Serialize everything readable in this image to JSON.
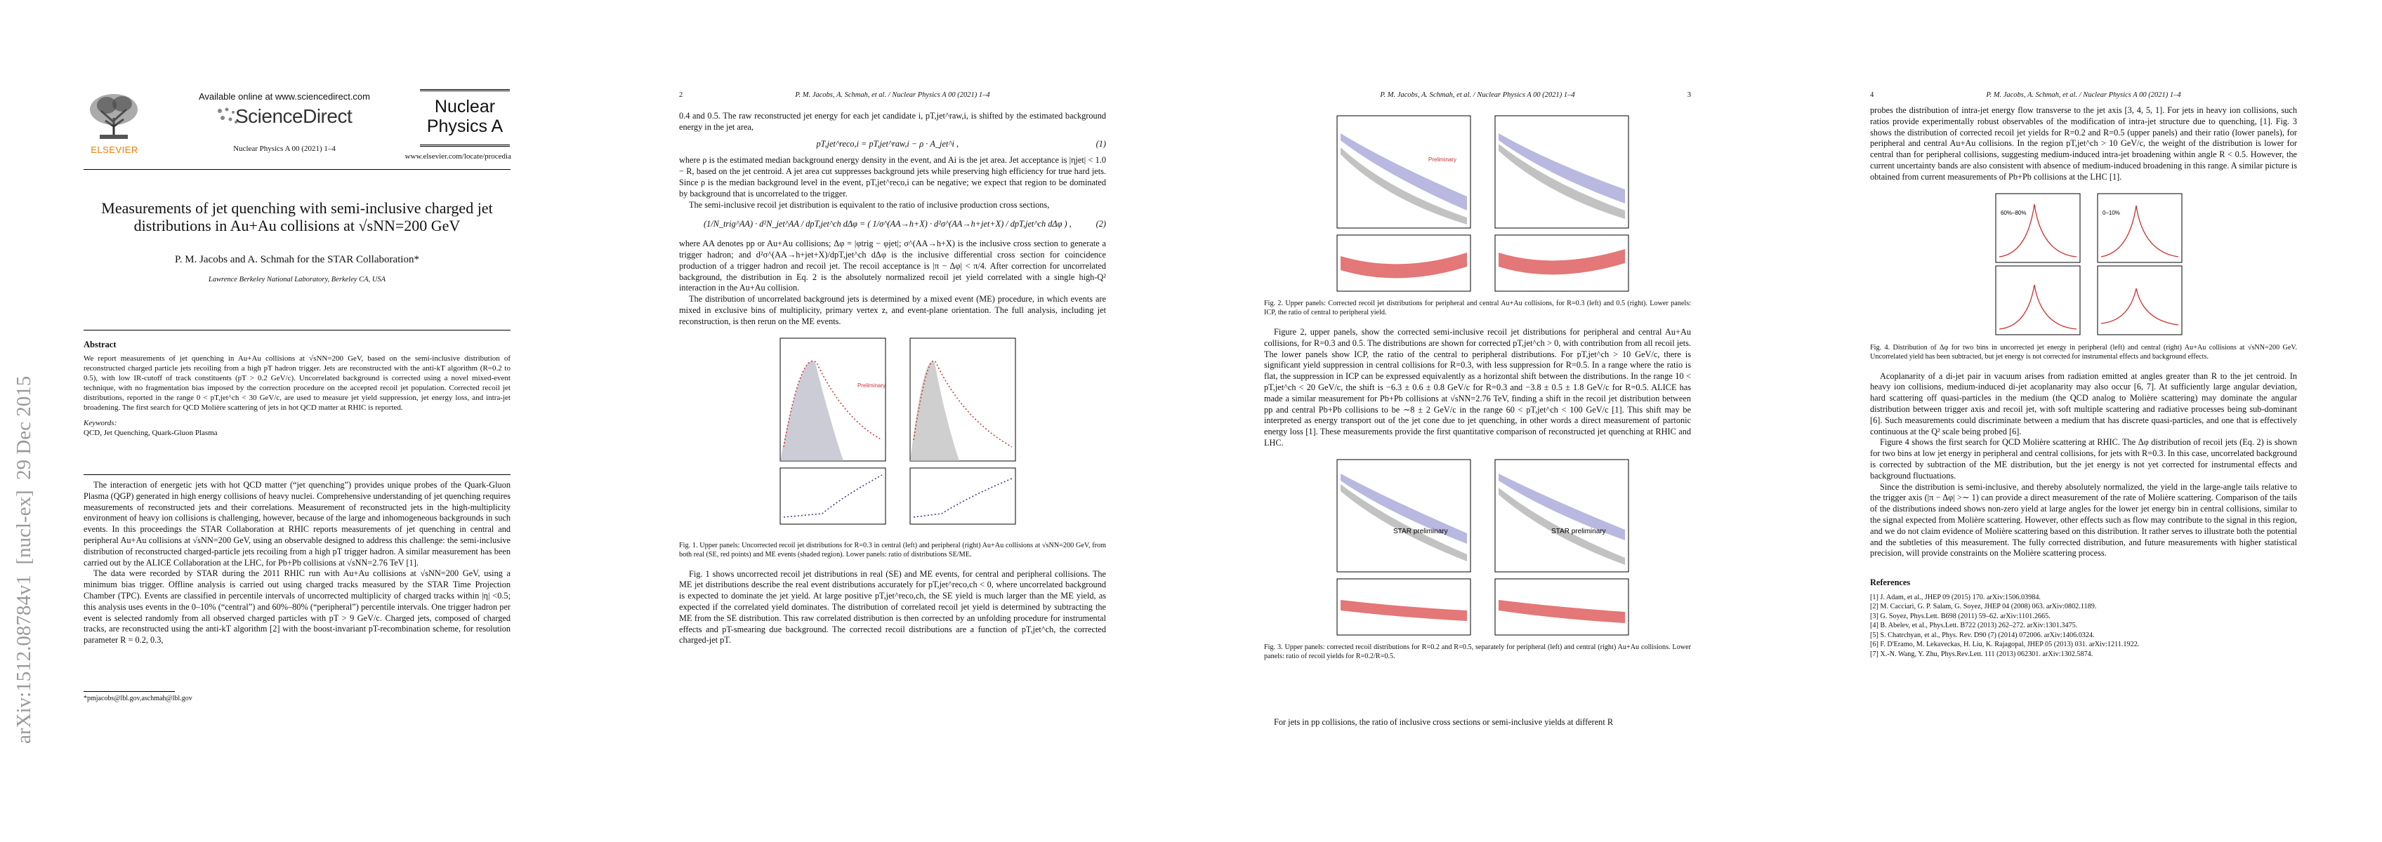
{
  "sidebar": "arXiv:1512.08784v1  [nucl-ex]  29 Dec 2015",
  "page1": {
    "publisher": "ELSEVIER",
    "available": "Available online at www.sciencedirect.com",
    "brand": "ScienceDirect",
    "journal_ref": "Nuclear Physics A 00 (2021) 1–4",
    "journal_name": "Nuclear Physics A",
    "journal_url": "www.elsevier.com/locate/procedia",
    "title": "Measurements of jet quenching with semi-inclusive charged jet distributions in Au+Au collisions at √sNN=200 GeV",
    "authors": "P. M. Jacobs and A. Schmah for the STAR Collaboration*",
    "affiliation": "Lawrence Berkeley National Laboratory, Berkeley CA, USA",
    "abstract_heading": "Abstract",
    "abstract": "We report measurements of jet quenching in Au+Au collisions at √sNN=200 GeV, based on the semi-inclusive distribution of reconstructed charged particle jets recoiling from a high pT hadron trigger. Jets are reconstructed with the anti-kT algorithm (R=0.2 to 0.5), with low IR-cutoff of track constituents (pT > 0.2 GeV/c). Uncorrelated background is corrected using a novel mixed-event technique, with no fragmentation bias imposed by the correction procedure on the accepted recoil jet population. Corrected recoil jet distributions, reported in the range 0 < pT,jet^ch < 30 GeV/c, are used to measure jet yield suppression, jet energy loss, and intra-jet broadening. The first search for QCD Molière scattering of jets in hot QCD matter at RHIC is reported.",
    "keywords_heading": "Keywords:",
    "keywords": "QCD, Jet Quenching, Quark-Gluon Plasma",
    "paragraphs": [
      "The interaction of energetic jets with hot QCD matter (“jet quenching”) provides unique probes of the Quark-Gluon Plasma (QGP) generated in high energy collisions of heavy nuclei. Comprehensive understanding of jet quenching requires measurements of reconstructed jets and their correlations. Measurement of reconstructed jets in the high-multiplicity environment of heavy ion collisions is challenging, however, because of the large and inhomogeneous backgrounds in such events. In this proceedings the STAR Collaboration at RHIC reports measurements of jet quenching in central and peripheral Au+Au collisions at √sNN=200 GeV, using an observable designed to address this challenge: the semi-inclusive distribution of reconstructed charged-particle jets recoiling from a high pT trigger hadron. A similar measurement has been carried out by the ALICE Collaboration at the LHC, for Pb+Pb collisions at √sNN=2.76 TeV [1].",
      "The data were recorded by STAR during the 2011 RHIC run with Au+Au collisions at √sNN=200 GeV, using a minimum bias trigger. Offline analysis is carried out using charged tracks measured by the STAR Time Projection Chamber (TPC). Events are classified in percentile intervals of uncorrected multiplicity of charged tracks within |η| <0.5; this analysis uses events in the 0–10% (“central”) and 60%–80% (“peripheral”) percentile intervals. One trigger hadron per event is selected randomly from all observed charged particles with pT > 9 GeV/c. Charged jets, composed of charged tracks, are reconstructed using the anti-kT algorithm [2] with the boost-invariant pT-recombination scheme, for resolution parameter R = 0.2, 0.3,"
    ],
    "footnote": "*pmjacobs@lbl.gov,aschmah@lbl.gov"
  },
  "page2": {
    "number": "2",
    "running_head": "P. M. Jacobs, A. Schmah, et al. / Nuclear Physics A 00 (2021) 1–4",
    "p1": "0.4 and 0.5. The raw reconstructed jet energy for each jet candidate i, pT,jet^raw,i, is shifted by the estimated background energy in the jet area,",
    "eq1": "pT,jet^reco,i = pT,jet^raw,i − ρ · A_jet^i ,",
    "eq1_number": "(1)",
    "p2": "where ρ is the estimated median background energy density in the event, and Ai is the jet area. Jet acceptance is |ηjet| < 1.0 − R, based on the jet centroid. A jet area cut suppresses background jets while preserving high efficiency for true hard jets. Since ρ is the median background level in the event, pT,jet^reco,i can be negative; we expect that region to be dominated by background that is uncorrelated to the trigger.",
    "p3": "The semi-inclusive recoil jet distribution is equivalent to the ratio of inclusive production cross sections,",
    "eq2": "(1/N_trig^AA) · d²N_jet^AA / dpT,jet^ch dΔφ  =  ( 1/σ^(AA→h+X) · d²σ^(AA→h+jet+X) / dpT,jet^ch dΔφ ) ,",
    "eq2_number": "(2)",
    "p4": "where AA denotes pp or Au+Au collisions; Δφ = |φtrig − φjet|; σ^(AA→h+X) is the inclusive cross section to generate a trigger hadron; and d²σ^(AA→h+jet+X)/dpT,jet^ch dΔφ is the inclusive differential cross section for coincidence production of a trigger hadron and recoil jet. The recoil acceptance is |π − Δφ| < π/4. After correction for uncorrelated background, the distribution in Eq. 2 is the absolutely normalized recoil jet yield correlated with a single high-Q² interaction in the Au+Au collision.",
    "p5": "The distribution of uncorrelated background jets is determined by a mixed event (ME) procedure, in which events are mixed in exclusive bins of multiplicity, primary vertex z, and event-plane orientation. The full analysis, including jet reconstruction, is then rerun on the ME events.",
    "figure_label": "Preliminary",
    "caption": "Fig. 1. Upper panels: Uncorrected recoil jet distributions for R=0.3 in central (left) and peripheral (right) Au+Au collisions at √sNN=200 GeV, from both real (SE, red points) and ME events (shaded region). Lower panels: ratio of distributions SE/ME.",
    "p6": "Fig. 1 shows uncorrected recoil jet distributions in real (SE) and ME events, for central and peripheral collisions. The ME jet distributions describe the real event distributions accurately for pT,jet^reco,ch < 0, where uncorrelated background is expected to dominate the jet yield. At large positive pT,jet^reco,ch, the SE yield is much larger than the ME yield, as expected if the correlated yield dominates. The distribution of correlated recoil jet yield is determined by subtracting the ME from the SE distribution. This raw correlated distribution is then corrected by an unfolding procedure for instrumental effects and pT-smearing due background. The corrected recoil distributions are a function of pT,jet^ch, the corrected charged-jet pT."
  },
  "page3": {
    "number": "3",
    "running_head": "P. M. Jacobs, A. Schmah, et al. / Nuclear Physics A 00 (2021) 1–4",
    "figure2_label": "Preliminary",
    "caption2": "Fig. 2. Upper panels: Corrected recoil jet distributions for peripheral and central Au+Au collisions, for R=0.3 (left) and 0.5 (right). Lower panels: ICP, the ratio of central to peripheral yield.",
    "p1": "Figure 2, upper panels, show the corrected semi-inclusive recoil jet distributions for peripheral and central Au+Au collisions, for R=0.3 and 0.5. The distributions are shown for corrected pT,jet^ch > 0, with contribution from all recoil jets. The lower panels show ICP, the ratio of the central to peripheral distributions. For pT,jet^ch > 10 GeV/c, there is significant yield suppression in central collisions for R=0.3, with less suppression for R=0.5. In a range where the ratio is flat, the suppression in ICP can be expressed equivalently as a horizontal shift between the distributions. In the range 10 < pT,jet^ch < 20 GeV/c, the shift is −6.3 ± 0.6 ± 0.8 GeV/c for R=0.3 and −3.8 ± 0.5 ± 1.8 GeV/c for R=0.5. ALICE has made a similar measurement for Pb+Pb collisions at √sNN=2.76 TeV, finding a shift in the recoil jet distribution between pp and central Pb+Pb collisions to be ∼8 ± 2 GeV/c in the range 60 < pT,jet^ch < 100 GeV/c [1]. This shift may be interpreted as energy transport out of the jet cone due to jet quenching, in other words a direct measurement of partonic energy loss [1]. These measurements provide the first quantitative comparison of reconstructed jet quenching at RHIC and LHC.",
    "figure3_label": "STAR preliminary",
    "caption3": "Fig. 3. Upper panels: corrected recoil distributions for R=0.2 and R=0.5, separately for peripheral (left) and central (right) Au+Au collisions. Lower panels: ratio of recoil yields for R=0.2/R=0.5.",
    "p2": "For jets in pp collisions, the ratio of inclusive cross sections or semi-inclusive yields at different R"
  },
  "page4": {
    "number": "4",
    "running_head": "P. M. Jacobs, A. Schmah, et al. / Nuclear Physics A 00 (2021) 1–4",
    "p1": "probes the distribution of intra-jet energy flow transverse to the jet axis [3, 4, 5, 1]. For jets in heavy ion collisions, such ratios provide experimentally robust observables of the modification of intra-jet structure due to quenching, [1]. Fig. 3 shows the distribution of corrected recoil jet yields for R=0.2 and R=0.5 (upper panels) and their ratio (lower panels), for peripheral and central Au+Au collisions. In the region pT,jet^ch > 10 GeV/c, the weight of the distribution is lower for central than for peripheral collisions, suggesting medium-induced intra-jet broadening within angle R < 0.5. However, the current uncertainty bands are also consistent with absence of medium-induced broadening in this range. A similar picture is obtained from current measurements of Pb+Pb collisions at the LHC [1].",
    "figure4_labels": [
      "60%–80%",
      "0–10%"
    ],
    "caption4": "Fig. 4. Distribution of Δφ for two bins in uncorrected jet energy in peripheral (left) and central (right) Au+Au collisions at √sNN=200 GeV. Uncorrelated yield has been subtracted, but jet energy is not corrected for instrumental effects and background effects.",
    "p2": "Acoplanarity of a di-jet pair in vacuum arises from radiation emitted at angles greater than R to the jet centroid. In heavy ion collisions, medium-induced di-jet acoplanarity may also occur [6, 7]. At sufficiently large angular deviation, hard scattering off quasi-particles in the medium (the QCD analog to Molière scattering) may dominate the angular distribution between trigger axis and recoil jet, with soft multiple scattering and radiative processes being sub-dominant [6]. Such measurements could discriminate between a medium that has discrete quasi-particles, and one that is effectively continuous at the Q² scale being probed [6].",
    "p3": "Figure 4 shows the first search for QCD Molière scattering at RHIC. The Δφ distribution of recoil jets (Eq. 2) is shown for two bins at low jet energy in peripheral and central collisions, for jets with R=0.3. In this case, uncorrelated background is corrected by subtraction of the ME distribution, but the jet energy is not yet corrected for instrumental effects and background fluctuations.",
    "p4": "Since the distribution is semi-inclusive, and thereby absolutely normalized, the yield in the large-angle tails relative to the trigger axis (|π − Δφ| >∼ 1) can provide a direct measurement of the rate of Molière scattering. Comparison of the tails of the distributions indeed shows non-zero yield at large angles for the lower jet energy bin in central collisions, similar to the signal expected from Molière scattering. However, other effects such as flow may contribute to the signal in this region, and we do not claim evidence of Molière scattering based on this distribution. It rather serves to illustrate both the potential and the subtleties of this measurement. The fully corrected distribution, and future measurements with higher statistical precision, will provide constraints on the Molière scattering process.",
    "references_heading": "References",
    "references": [
      "[1] J. Adam, et al., JHEP 09 (2015) 170. arXiv:1506.03984.",
      "[2] M. Cacciari, G. P. Salam, G. Soyez, JHEP 04 (2008) 063. arXiv:0802.1189.",
      "[3] G. Soyez, Phys.Lett. B698 (2011) 59–62. arXiv:1101.2665.",
      "[4] B. Abelev, et al., Phys.Lett. B722 (2013) 262–272. arXiv:1301.3475.",
      "[5] S. Chatrchyan, et al., Phys. Rev. D90 (7) (2014) 072006. arXiv:1406.0324.",
      "[6] F. D'Eramo, M. Lekaveckas, H. Liu, K. Rajagopal, JHEP 05 (2013) 031. arXiv:1211.1922.",
      "[7] X.-N. Wang, Y. Zhu, Phys.Rev.Lett. 111 (2013) 062301. arXiv:1302.5874."
    ]
  }
}
